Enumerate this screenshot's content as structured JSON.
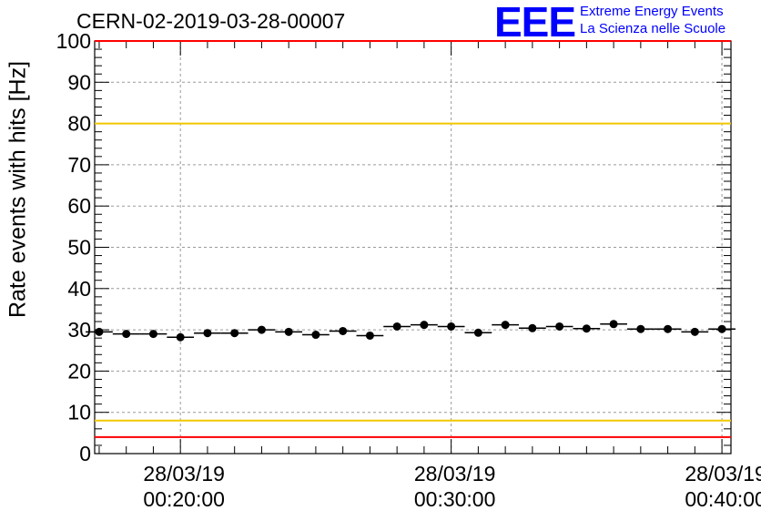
{
  "title": "CERN-02-2019-03-28-00007",
  "logo": {
    "text": "EEE",
    "line1": "Extreme Energy Events",
    "line2": "La Scienza nelle Scuole",
    "color": "#0000ff"
  },
  "chart_data": {
    "type": "scatter",
    "title": "CERN-02-2019-03-28-00007",
    "ylabel": "Rate events with hits [Hz]",
    "xlabel": "",
    "ylim": [
      0,
      100
    ],
    "y_ticks": [
      0,
      10,
      20,
      30,
      40,
      50,
      60,
      70,
      80,
      90,
      100
    ],
    "x_time_range": [
      "00:16:50",
      "00:40:20"
    ],
    "x_ticks": [
      {
        "date": "28/03/19",
        "time": "00:20:00"
      },
      {
        "date": "28/03/19",
        "time": "00:30:00"
      },
      {
        "date": "28/03/19",
        "time": "00:40:00"
      }
    ],
    "grid": true,
    "reference_lines": [
      {
        "y": 100,
        "color": "#ff0000"
      },
      {
        "y": 80,
        "color": "#f0c800"
      },
      {
        "y": 8,
        "color": "#f0c800"
      },
      {
        "y": 4,
        "color": "#ff0000"
      }
    ],
    "series": [
      {
        "color": "#000000",
        "x": [
          "00:17:00",
          "00:18:00",
          "00:19:00",
          "00:20:00",
          "00:21:00",
          "00:22:00",
          "00:23:00",
          "00:24:00",
          "00:25:00",
          "00:26:00",
          "00:27:00",
          "00:28:00",
          "00:29:00",
          "00:30:00",
          "00:31:00",
          "00:32:00",
          "00:33:00",
          "00:34:00",
          "00:35:00",
          "00:36:00",
          "00:37:00",
          "00:38:00",
          "00:39:00",
          "00:40:00"
        ],
        "y": [
          29.5,
          29.0,
          29.0,
          28.2,
          29.2,
          29.2,
          30.0,
          29.5,
          28.8,
          29.7,
          28.6,
          30.8,
          31.2,
          30.8,
          29.3,
          31.2,
          30.4,
          30.8,
          30.3,
          31.4,
          30.2,
          30.2,
          29.5,
          30.2
        ]
      }
    ]
  }
}
